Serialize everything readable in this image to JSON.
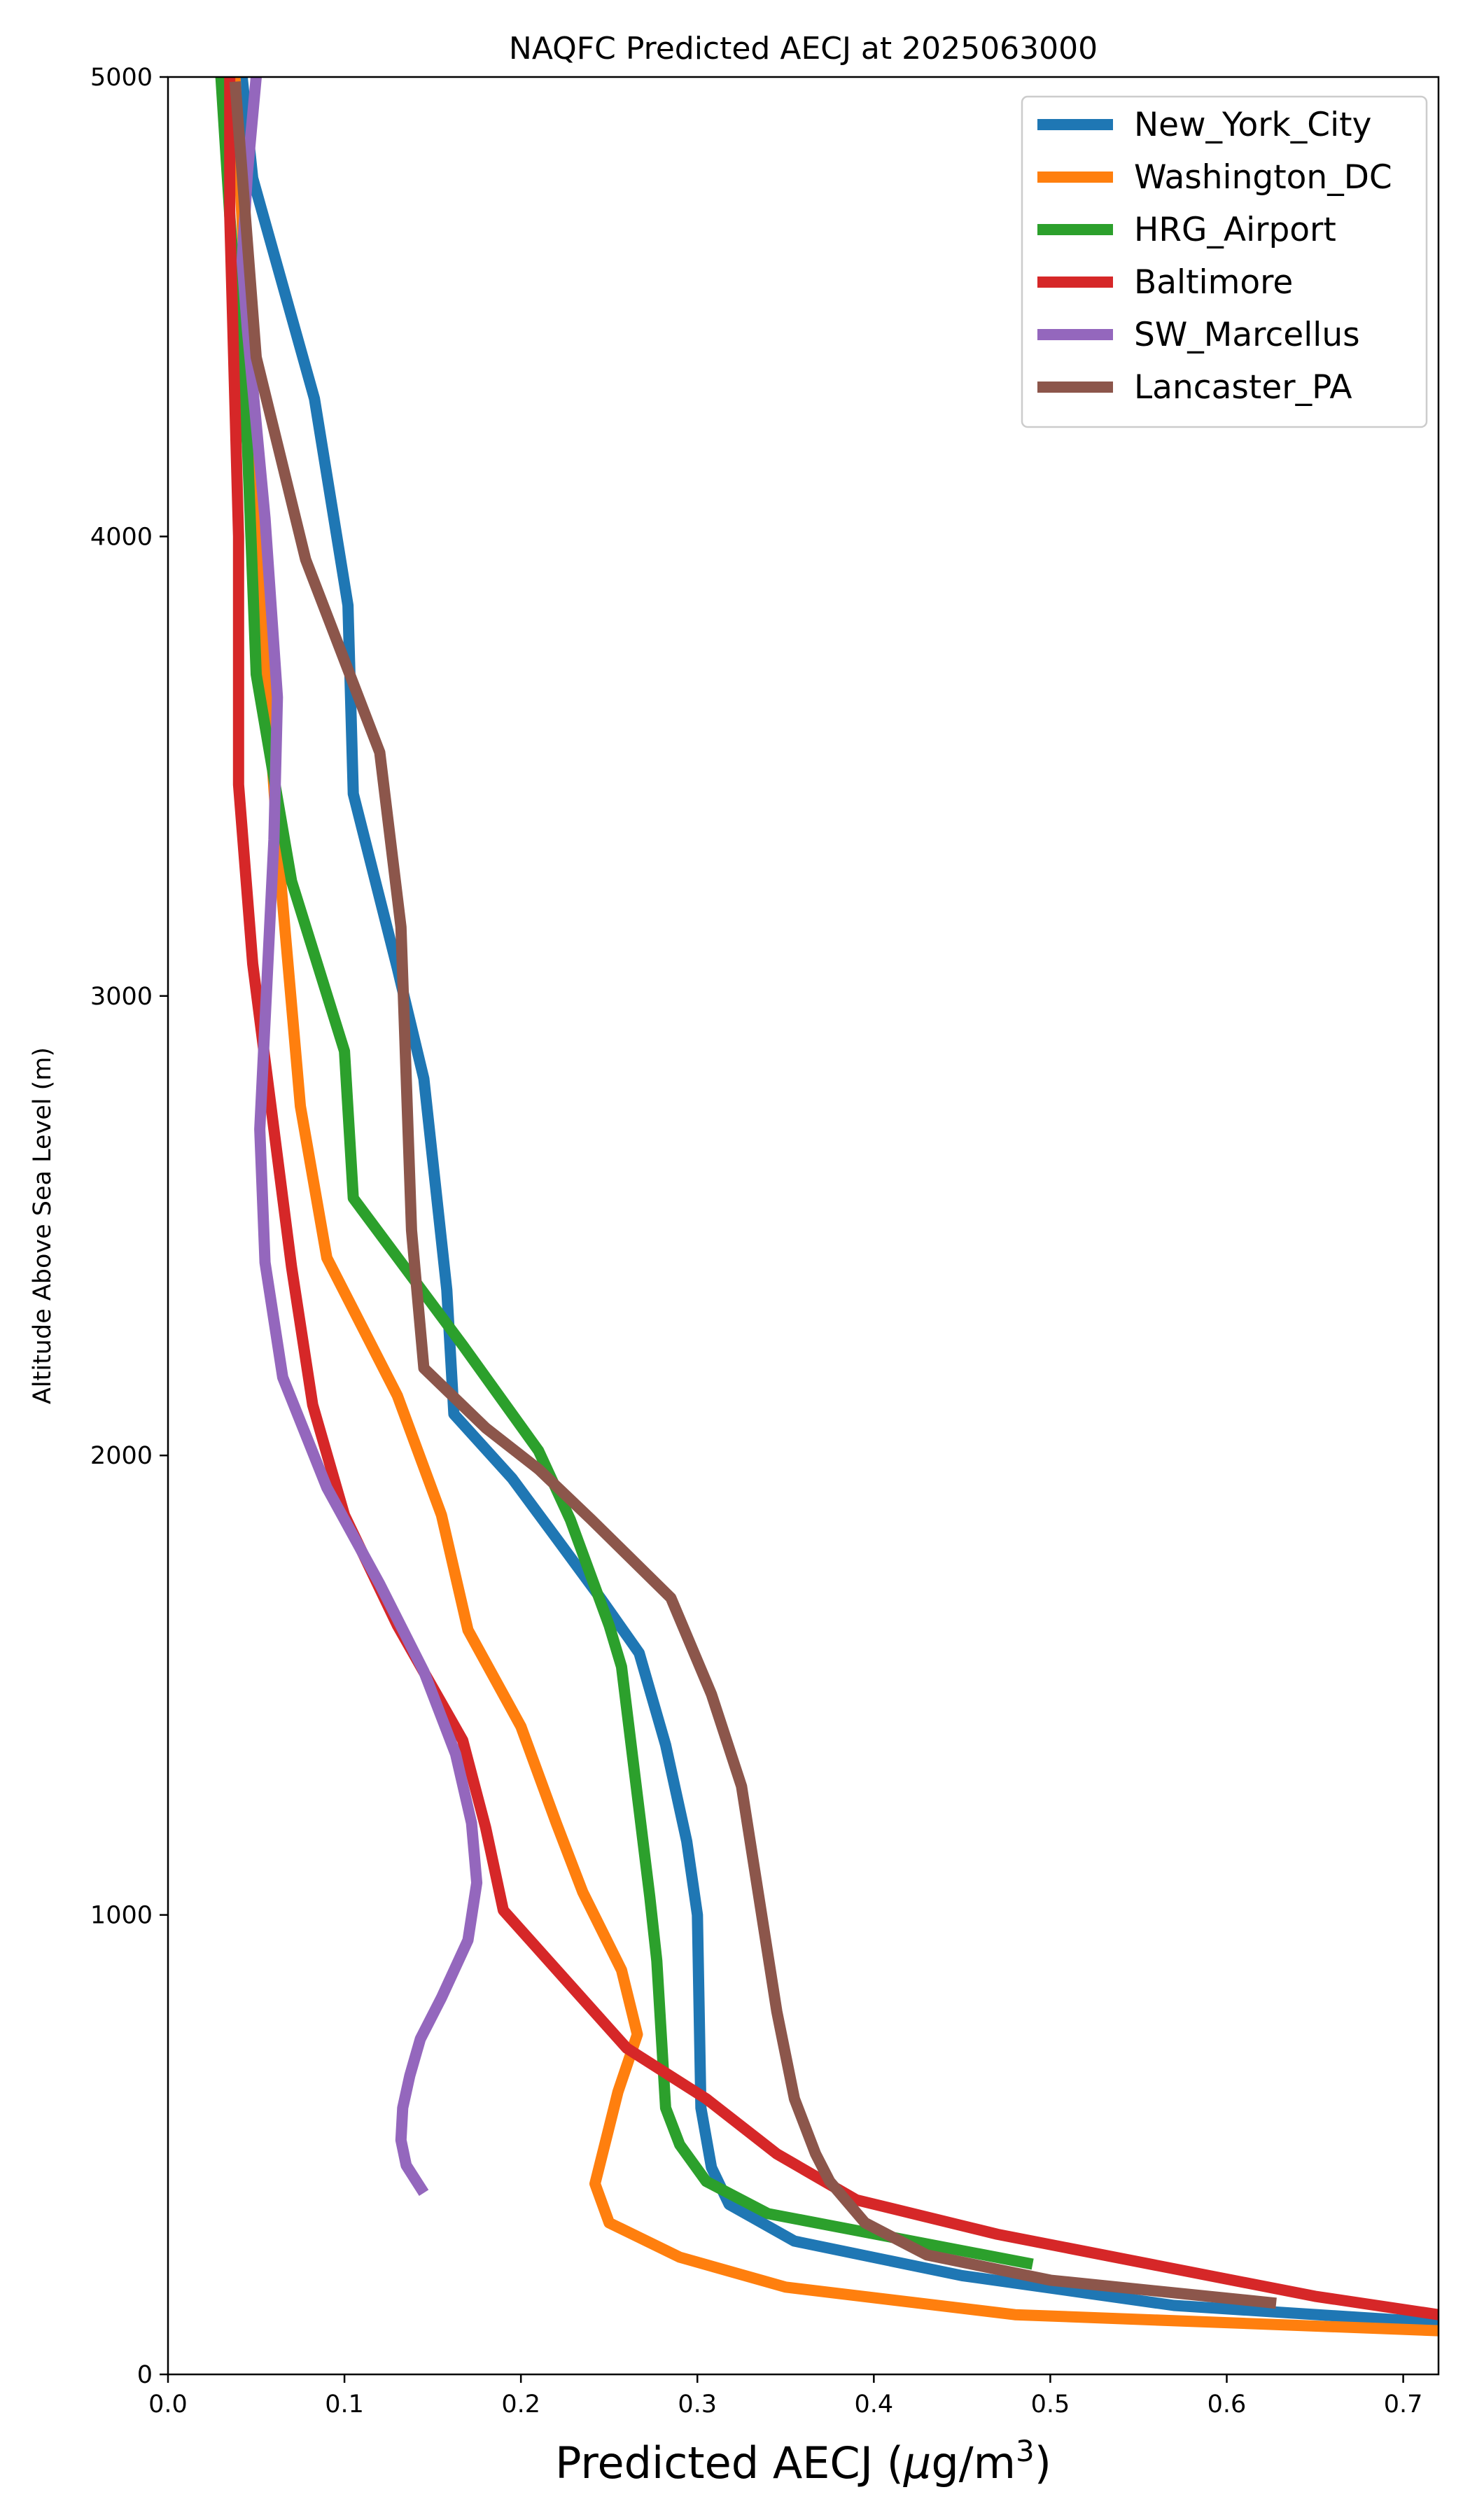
{
  "chart_data": {
    "type": "line",
    "title": "NAQFC Predicted AECJ at 2025063000",
    "xlabel": "Predicted AECJ (μg/m³)",
    "xlabel_main": "Predicted AECJ (",
    "xlabel_unit_mu": "μ",
    "xlabel_unit_rest": "g/m",
    "xlabel_unit_sup": "3",
    "xlabel_close": ")",
    "ylabel": "Altitude Above Sea Level (m)",
    "xlim": [
      0,
      0.72
    ],
    "ylim": [
      0,
      5000
    ],
    "x_ticks": [
      0.0,
      0.1,
      0.2,
      0.3,
      0.4,
      0.5,
      0.6,
      0.7
    ],
    "x_tick_labels": [
      "0.0",
      "0.1",
      "0.2",
      "0.3",
      "0.4",
      "0.5",
      "0.6",
      "0.7"
    ],
    "y_ticks": [
      0,
      1000,
      2000,
      3000,
      4000,
      5000
    ],
    "y_tick_labels": [
      "0",
      "1000",
      "2000",
      "3000",
      "4000",
      "5000"
    ],
    "grid": false,
    "legend_position": "top-right",
    "series": [
      {
        "name": "New_York_City",
        "color": "#1f77b4",
        "points": [
          [
            0.72,
            113
          ],
          [
            0.57,
            150
          ],
          [
            0.45,
            215
          ],
          [
            0.355,
            290
          ],
          [
            0.318,
            370
          ],
          [
            0.308,
            450
          ],
          [
            0.302,
            580
          ],
          [
            0.3,
            1000
          ],
          [
            0.294,
            1160
          ],
          [
            0.282,
            1370
          ],
          [
            0.267,
            1570
          ],
          [
            0.245,
            1690
          ],
          [
            0.222,
            1810
          ],
          [
            0.195,
            1950
          ],
          [
            0.162,
            2090
          ],
          [
            0.158,
            2360
          ],
          [
            0.145,
            2820
          ],
          [
            0.13,
            3060
          ],
          [
            0.105,
            3440
          ],
          [
            0.102,
            3850
          ],
          [
            0.083,
            4300
          ],
          [
            0.048,
            4780
          ],
          [
            0.042,
            5000
          ]
        ]
      },
      {
        "name": "Washington_DC",
        "color": "#ff7f0e",
        "points": [
          [
            0.72,
            95
          ],
          [
            0.48,
            130
          ],
          [
            0.35,
            190
          ],
          [
            0.29,
            255
          ],
          [
            0.25,
            330
          ],
          [
            0.242,
            415
          ],
          [
            0.255,
            615
          ],
          [
            0.266,
            740
          ],
          [
            0.257,
            880
          ],
          [
            0.235,
            1050
          ],
          [
            0.22,
            1200
          ],
          [
            0.2,
            1410
          ],
          [
            0.17,
            1620
          ],
          [
            0.155,
            1870
          ],
          [
            0.13,
            2130
          ],
          [
            0.09,
            2430
          ],
          [
            0.075,
            2760
          ],
          [
            0.063,
            3290
          ],
          [
            0.05,
            4000
          ],
          [
            0.045,
            4450
          ],
          [
            0.038,
            5000
          ]
        ]
      },
      {
        "name": "HRG_Airport",
        "color": "#2ca02c",
        "points": [
          [
            0.49,
            240
          ],
          [
            0.34,
            350
          ],
          [
            0.305,
            420
          ],
          [
            0.29,
            500
          ],
          [
            0.282,
            580
          ],
          [
            0.277,
            900
          ],
          [
            0.273,
            1040
          ],
          [
            0.257,
            1540
          ],
          [
            0.25,
            1630
          ],
          [
            0.228,
            1860
          ],
          [
            0.21,
            2010
          ],
          [
            0.167,
            2240
          ],
          [
            0.105,
            2560
          ],
          [
            0.1,
            2880
          ],
          [
            0.07,
            3250
          ],
          [
            0.05,
            3700
          ],
          [
            0.045,
            4200
          ],
          [
            0.035,
            4700
          ],
          [
            0.03,
            5000
          ]
        ]
      },
      {
        "name": "Baltimore",
        "color": "#d62728",
        "points": [
          [
            0.72,
            130
          ],
          [
            0.65,
            170
          ],
          [
            0.47,
            305
          ],
          [
            0.39,
            380
          ],
          [
            0.345,
            480
          ],
          [
            0.305,
            600
          ],
          [
            0.26,
            710
          ],
          [
            0.225,
            860
          ],
          [
            0.19,
            1010
          ],
          [
            0.18,
            1190
          ],
          [
            0.167,
            1380
          ],
          [
            0.13,
            1630
          ],
          [
            0.1,
            1870
          ],
          [
            0.082,
            2110
          ],
          [
            0.07,
            2410
          ],
          [
            0.048,
            3070
          ],
          [
            0.04,
            3460
          ],
          [
            0.04,
            4000
          ],
          [
            0.035,
            4700
          ],
          [
            0.035,
            5000
          ]
        ]
      },
      {
        "name": "SW_Marcellus",
        "color": "#9467bd",
        "points": [
          [
            0.145,
            395
          ],
          [
            0.135,
            455
          ],
          [
            0.132,
            510
          ],
          [
            0.133,
            580
          ],
          [
            0.137,
            650
          ],
          [
            0.143,
            730
          ],
          [
            0.155,
            820
          ],
          [
            0.17,
            945
          ],
          [
            0.175,
            1070
          ],
          [
            0.172,
            1200
          ],
          [
            0.163,
            1350
          ],
          [
            0.145,
            1530
          ],
          [
            0.12,
            1720
          ],
          [
            0.09,
            1930
          ],
          [
            0.065,
            2170
          ],
          [
            0.055,
            2420
          ],
          [
            0.052,
            2710
          ],
          [
            0.06,
            3340
          ],
          [
            0.062,
            3650
          ],
          [
            0.055,
            4040
          ],
          [
            0.045,
            4450
          ],
          [
            0.042,
            4600
          ],
          [
            0.045,
            4790
          ],
          [
            0.05,
            5000
          ]
        ]
      },
      {
        "name": "Lancaster_PA",
        "color": "#8c564b",
        "points": [
          [
            0.628,
            155
          ],
          [
            0.5,
            205
          ],
          [
            0.43,
            260
          ],
          [
            0.395,
            330
          ],
          [
            0.375,
            420
          ],
          [
            0.367,
            480
          ],
          [
            0.355,
            600
          ],
          [
            0.345,
            790
          ],
          [
            0.325,
            1280
          ],
          [
            0.308,
            1480
          ],
          [
            0.285,
            1690
          ],
          [
            0.24,
            1860
          ],
          [
            0.21,
            1970
          ],
          [
            0.18,
            2060
          ],
          [
            0.145,
            2190
          ],
          [
            0.138,
            2490
          ],
          [
            0.132,
            3150
          ],
          [
            0.12,
            3530
          ],
          [
            0.078,
            3950
          ],
          [
            0.05,
            4390
          ],
          [
            0.038,
            4990
          ]
        ]
      }
    ]
  }
}
